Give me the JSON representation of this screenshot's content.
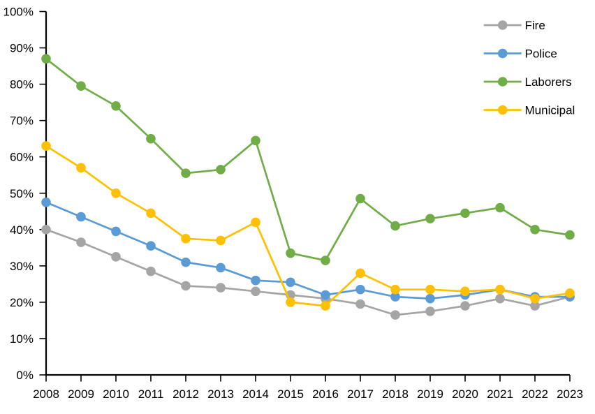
{
  "chart_data": {
    "type": "line",
    "title": "",
    "x_labels": [
      "2008",
      "2009",
      "2010",
      "2011",
      "2012",
      "2013",
      "2014",
      "2015",
      "2016",
      "2017",
      "2018",
      "2019",
      "2020",
      "2021",
      "2022",
      "2023"
    ],
    "series": [
      {
        "name": "Fire",
        "color": "#A5A5A5",
        "values": [
          40.0,
          36.5,
          32.5,
          28.5,
          24.5,
          24.0,
          23.0,
          22.0,
          21.0,
          19.5,
          16.5,
          17.5,
          19.0,
          21.0,
          19.0,
          21.5
        ]
      },
      {
        "name": "Police",
        "color": "#5B9BD5",
        "values": [
          47.5,
          43.5,
          39.5,
          35.5,
          31.0,
          29.5,
          26.0,
          25.5,
          22.0,
          23.5,
          21.5,
          21.0,
          22.0,
          23.5,
          21.5,
          21.5
        ]
      },
      {
        "name": "Laborers",
        "color": "#70AD47",
        "values": [
          87.0,
          79.5,
          74.0,
          65.0,
          55.5,
          56.5,
          64.5,
          33.5,
          31.5,
          48.5,
          41.0,
          43.0,
          44.5,
          46.0,
          40.0,
          38.5
        ]
      },
      {
        "name": "Municipal",
        "color": "#FFC000",
        "values": [
          63.0,
          57.0,
          50.0,
          44.5,
          37.5,
          37.0,
          42.0,
          20.0,
          19.0,
          28.0,
          23.5,
          23.5,
          23.0,
          23.5,
          21.0,
          22.5
        ]
      }
    ],
    "ylim": [
      0,
      100
    ],
    "ytick_step": 10,
    "ytick_labels": [
      "0%",
      "10%",
      "20%",
      "30%",
      "40%",
      "50%",
      "60%",
      "70%",
      "80%",
      "90%",
      "100%"
    ],
    "xlabel": "",
    "ylabel": "",
    "grid": false,
    "legend": {
      "position": "top-right",
      "entries": [
        "Fire",
        "Police",
        "Laborers",
        "Municipal"
      ]
    },
    "axis_color": "#000000",
    "text_color": "#000000",
    "background": "#FFFFFF",
    "marker": "circle"
  }
}
